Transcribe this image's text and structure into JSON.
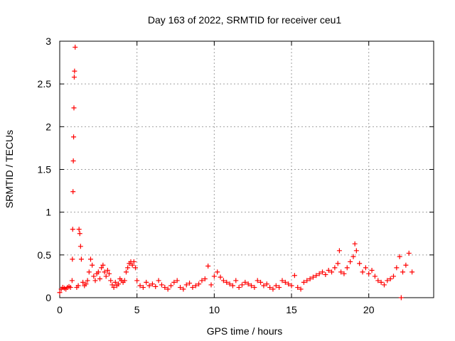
{
  "chart_data": {
    "type": "scatter",
    "title": "Day 163 of 2022, SRMTID for receiver ceu1",
    "xlabel": "GPS time / hours",
    "ylabel": "SRMTID / TECUs",
    "xlim": [
      0,
      24.2
    ],
    "ylim": [
      0,
      3
    ],
    "xticks": [
      0,
      5,
      10,
      15,
      20
    ],
    "xtick_labels": [
      "0",
      "5",
      "10",
      "15",
      "20"
    ],
    "yticks": [
      0,
      0.5,
      1,
      1.5,
      2,
      2.5,
      3
    ],
    "ytick_labels": [
      "0",
      "0.5",
      "1",
      "1.5",
      "2",
      "2.5",
      "3"
    ],
    "grid": true,
    "marker": "+",
    "color": "#ff0000",
    "series": [
      {
        "name": "ceu1",
        "x": [
          0.0,
          0.1,
          0.2,
          0.3,
          0.4,
          0.5,
          0.6,
          0.7,
          0.8,
          0.82,
          0.84,
          0.86,
          0.88,
          0.9,
          0.92,
          0.94,
          0.96,
          1.0,
          1.1,
          1.2,
          1.25,
          1.3,
          1.35,
          1.4,
          1.5,
          1.6,
          1.7,
          1.8,
          1.9,
          2.0,
          2.1,
          2.2,
          2.3,
          2.4,
          2.5,
          2.6,
          2.7,
          2.8,
          2.9,
          3.0,
          3.1,
          3.2,
          3.3,
          3.4,
          3.5,
          3.6,
          3.7,
          3.8,
          3.9,
          4.0,
          4.1,
          4.2,
          4.3,
          4.4,
          4.5,
          4.6,
          4.7,
          4.8,
          4.9,
          5.0,
          5.2,
          5.4,
          5.6,
          5.8,
          6.0,
          6.2,
          6.4,
          6.6,
          6.8,
          7.0,
          7.2,
          7.4,
          7.6,
          7.8,
          8.0,
          8.2,
          8.4,
          8.6,
          8.8,
          9.0,
          9.2,
          9.4,
          9.6,
          9.8,
          10.0,
          10.2,
          10.4,
          10.6,
          10.8,
          11.0,
          11.2,
          11.4,
          11.6,
          11.8,
          12.0,
          12.2,
          12.4,
          12.6,
          12.8,
          13.0,
          13.2,
          13.4,
          13.6,
          13.8,
          14.0,
          14.2,
          14.4,
          14.6,
          14.8,
          15.0,
          15.2,
          15.4,
          15.6,
          15.8,
          16.0,
          16.2,
          16.4,
          16.6,
          16.8,
          17.0,
          17.2,
          17.4,
          17.6,
          17.8,
          18.0,
          18.1,
          18.2,
          18.4,
          18.6,
          18.8,
          19.0,
          19.1,
          19.2,
          19.4,
          19.6,
          19.8,
          20.0,
          20.2,
          20.4,
          20.6,
          20.8,
          21.0,
          21.2,
          21.4,
          21.6,
          21.8,
          22.0,
          22.1,
          22.2,
          22.4,
          22.6,
          22.8
        ],
        "y": [
          0.06,
          0.1,
          0.12,
          0.11,
          0.1,
          0.12,
          0.13,
          0.12,
          0.2,
          0.45,
          0.8,
          1.24,
          1.6,
          1.88,
          2.22,
          2.58,
          2.65,
          2.93,
          0.12,
          0.14,
          0.8,
          0.75,
          0.6,
          0.45,
          0.18,
          0.14,
          0.16,
          0.2,
          0.3,
          0.45,
          0.38,
          0.25,
          0.2,
          0.28,
          0.3,
          0.22,
          0.35,
          0.38,
          0.3,
          0.25,
          0.32,
          0.28,
          0.2,
          0.15,
          0.12,
          0.18,
          0.14,
          0.16,
          0.22,
          0.2,
          0.18,
          0.2,
          0.3,
          0.35,
          0.4,
          0.42,
          0.38,
          0.42,
          0.35,
          0.2,
          0.14,
          0.12,
          0.18,
          0.14,
          0.16,
          0.13,
          0.2,
          0.15,
          0.12,
          0.1,
          0.14,
          0.18,
          0.2,
          0.12,
          0.1,
          0.15,
          0.17,
          0.12,
          0.14,
          0.16,
          0.2,
          0.22,
          0.37,
          0.15,
          0.25,
          0.3,
          0.24,
          0.2,
          0.18,
          0.16,
          0.14,
          0.2,
          0.12,
          0.15,
          0.18,
          0.16,
          0.14,
          0.12,
          0.2,
          0.18,
          0.14,
          0.16,
          0.12,
          0.1,
          0.14,
          0.12,
          0.2,
          0.18,
          0.16,
          0.14,
          0.26,
          0.12,
          0.1,
          0.18,
          0.2,
          0.22,
          0.24,
          0.26,
          0.28,
          0.3,
          0.27,
          0.32,
          0.3,
          0.35,
          0.4,
          0.55,
          0.3,
          0.28,
          0.35,
          0.42,
          0.48,
          0.63,
          0.55,
          0.4,
          0.3,
          0.35,
          0.28,
          0.32,
          0.25,
          0.2,
          0.18,
          0.15,
          0.2,
          0.22,
          0.25,
          0.35,
          0.48,
          0.0,
          0.3,
          0.38,
          0.52,
          0.3
        ]
      }
    ]
  }
}
